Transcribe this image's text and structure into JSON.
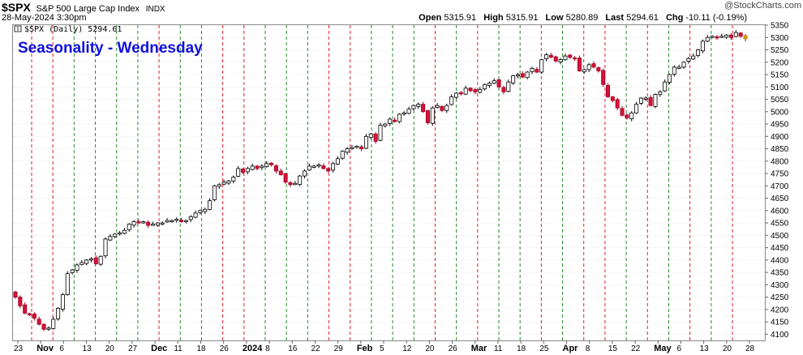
{
  "header": {
    "symbol": "$SPX",
    "name": "S&P 500 Large Cap Index",
    "exchange": "INDX",
    "datetime": "28-May-2024 3:30pm",
    "open_label": "Open",
    "open": "5315.91",
    "high_label": "High",
    "high": "5315.91",
    "low_label": "Low",
    "low": "5280.89",
    "last_label": "Last",
    "last": "5294.61",
    "chg_label": "Chg",
    "chg": "-10.11 (-0.19%)",
    "watermark": "@StockCharts.com"
  },
  "overlay_title": "Seasonality - Wednesday",
  "legend_text": "$SPX (Daily) 5294.61",
  "colors": {
    "up_candle": "#ffffff",
    "down_candle": "#d6123a",
    "last_candle": "#e0a000",
    "red_line": "#e0202a",
    "green_line": "#2a8a2a",
    "grid": "#d8d8d8",
    "title_blue": "#1010e0"
  },
  "chart_data": {
    "type": "candlestick",
    "title": "Seasonality - Wednesday",
    "ylim": [
      4075,
      5345
    ],
    "y_ticks": [
      4100,
      4150,
      4200,
      4250,
      4300,
      4350,
      4400,
      4450,
      4500,
      4550,
      4600,
      4650,
      4700,
      4750,
      4800,
      4850,
      4900,
      4950,
      5000,
      5050,
      5100,
      5150,
      5200,
      5250,
      5300,
      5350
    ],
    "x_tick_labels": [
      "23",
      "Nov",
      "6",
      "13",
      "20",
      "27",
      "Dec",
      "11",
      "18",
      "26",
      "2024",
      "8",
      "16",
      "22",
      "29",
      "Feb",
      "5",
      "12",
      "20",
      "26",
      "Mar",
      "11",
      "18",
      "25",
      "Apr",
      "8",
      "15",
      "22",
      "May",
      "6",
      "13",
      "20",
      "28"
    ],
    "x_tick_bold": [
      "Nov",
      "Dec",
      "2024",
      "Feb",
      "Mar",
      "Apr",
      "May"
    ],
    "weekly_wednesday_markers": {
      "description": "vertical dashed lines marking Wednesdays; red = index closed lower, green = closed higher",
      "colors": [
        "red",
        "red",
        "green",
        "green",
        "green",
        "green",
        "red",
        "green",
        "green",
        "red",
        "red",
        "green",
        "green",
        "green",
        "red",
        "red",
        "green",
        "green",
        "green",
        "red",
        "green",
        "red",
        "green",
        "green",
        "red",
        "green",
        "red",
        "red",
        "green",
        "red",
        "green",
        "red",
        "green",
        "red"
      ]
    },
    "closes": [
      4250,
      4215,
      4185,
      4180,
      4165,
      4140,
      4120,
      4125,
      4160,
      4205,
      4260,
      4345,
      4360,
      4380,
      4390,
      4400,
      4405,
      4385,
      4415,
      4485,
      4495,
      4505,
      4510,
      4520,
      4545,
      4555,
      4550,
      4555,
      4540,
      4545,
      4550,
      4550,
      4560,
      4560,
      4565,
      4555,
      4560,
      4575,
      4590,
      4600,
      4605,
      4640,
      4700,
      4705,
      4715,
      4720,
      4735,
      4770,
      4755,
      4770,
      4780,
      4770,
      4780,
      4790,
      4785,
      4760,
      4745,
      4715,
      4705,
      4710,
      4740,
      4760,
      4780,
      4780,
      4785,
      4770,
      4760,
      4790,
      4810,
      4840,
      4850,
      4855,
      4860,
      4850,
      4900,
      4910,
      4880,
      4945,
      4950,
      4970,
      4960,
      4990,
      4995,
      5010,
      5025,
      5030,
      5000,
      4955,
      5015,
      5025,
      5005,
      5025,
      5060,
      5075,
      5075,
      5095,
      5085,
      5080,
      5090,
      5110,
      5115,
      5125,
      5100,
      5080,
      5120,
      5145,
      5150,
      5140,
      5160,
      5175,
      5160,
      5210,
      5230,
      5220,
      5205,
      5210,
      5225,
      5220,
      5215,
      5165,
      5170,
      5190,
      5180,
      5165,
      5110,
      5060,
      5045,
      5015,
      4985,
      4975,
      4995,
      5030,
      5055,
      5055,
      5025,
      5070,
      5080,
      5120,
      5150,
      5180,
      5180,
      5200,
      5215,
      5225,
      5250,
      5285,
      5300,
      5305,
      5300,
      5305,
      5310,
      5300,
      5320,
      5305,
      5295
    ],
    "date_range": [
      "2023-10-23",
      "2024-05-28"
    ]
  }
}
